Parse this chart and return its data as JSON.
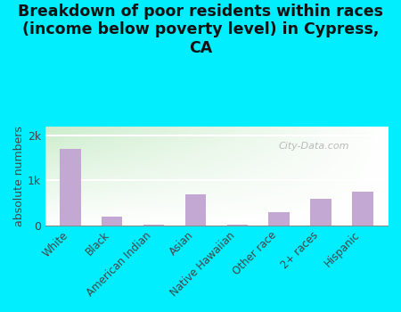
{
  "categories": [
    "White",
    "Black",
    "American Indian",
    "Asian",
    "Native Hawaiian",
    "Other race",
    "2+ races",
    "Hispanic"
  ],
  "values": [
    1700,
    200,
    20,
    700,
    20,
    300,
    600,
    750
  ],
  "bar_color": "#c4a8d4",
  "title": "Breakdown of poor residents within races\n(income below poverty level) in Cypress,\nCA",
  "ylabel": "absolute numbers",
  "yticks": [
    0,
    1000,
    2000
  ],
  "ytick_labels": [
    "0",
    "1k",
    "2k"
  ],
  "ylim": [
    0,
    2200
  ],
  "outer_bg": "#00eeff",
  "title_fontsize": 12.5,
  "title_fontweight": "bold",
  "bar_width": 0.5,
  "watermark": "City-Data.com",
  "watermark_fontsize": 8,
  "grid_color": "#dddddd",
  "plot_bg_left": "#c8e6c0",
  "plot_bg_right": "#f5fff5"
}
